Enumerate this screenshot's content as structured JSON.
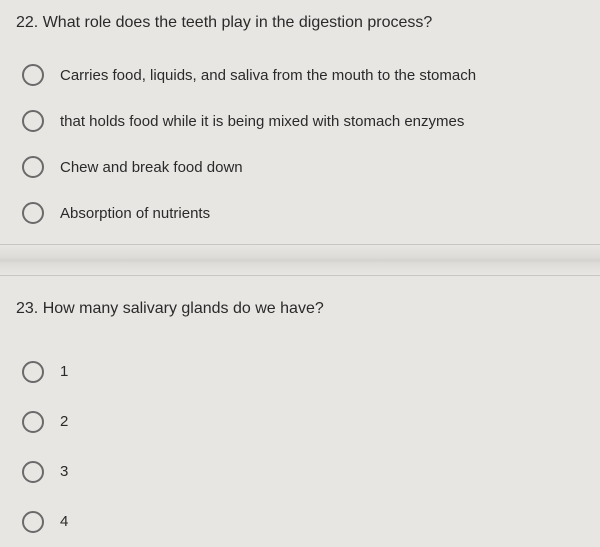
{
  "questions": [
    {
      "number": "22.",
      "text": "What role does the teeth play in the digestion process?",
      "options": [
        "Carries food, liquids, and saliva from the mouth to the stomach",
        "that holds food while it is being mixed with stomach enzymes",
        "Chew and break food down",
        "Absorption of nutrients"
      ]
    },
    {
      "number": "23.",
      "text": "How many salivary glands do we have?",
      "options": [
        "1",
        "2",
        "3",
        "4"
      ]
    }
  ],
  "colors": {
    "background": "#e8e6e3",
    "text": "#2a2a2a",
    "radio_border": "#6a6a6a",
    "divider": "#d5d3cf"
  },
  "typography": {
    "question_fontsize": 16,
    "option_fontsize": 15,
    "font_family": "Arial"
  }
}
